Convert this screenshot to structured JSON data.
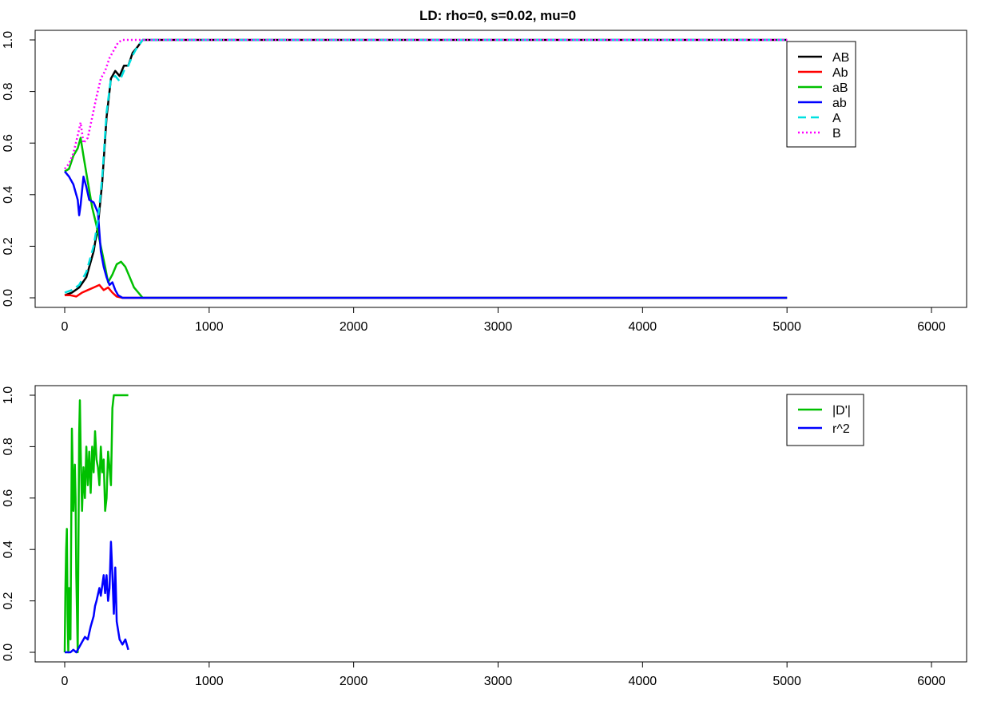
{
  "title": "LD: rho=0, s=0.02, mu=0",
  "chart_data": [
    {
      "type": "line",
      "title": "LD: rho=0, s=0.02, mu=0",
      "xlabel": "",
      "ylabel": "",
      "xlim": [
        0,
        6000
      ],
      "ylim": [
        0,
        1
      ],
      "x_ticks": [
        "0",
        "1000",
        "2000",
        "3000",
        "4000",
        "5000",
        "6000"
      ],
      "y_ticks": [
        "0.0",
        "0.2",
        "0.4",
        "0.6",
        "0.8",
        "1.0"
      ],
      "grid": false,
      "legend_position": "top-right",
      "series": [
        {
          "name": "AB",
          "color": "#000000",
          "dash": "solid",
          "x": [
            0,
            50,
            100,
            150,
            200,
            230,
            260,
            290,
            320,
            350,
            380,
            410,
            440,
            470,
            500,
            540,
            600,
            1000,
            2000,
            3000,
            4000,
            5000
          ],
          "y": [
            0.01,
            0.02,
            0.04,
            0.08,
            0.18,
            0.28,
            0.45,
            0.7,
            0.85,
            0.88,
            0.86,
            0.9,
            0.9,
            0.95,
            0.97,
            1.0,
            1.0,
            1.0,
            1.0,
            1.0,
            1.0,
            1.0
          ]
        },
        {
          "name": "Ab",
          "color": "#ff0000",
          "dash": "solid",
          "x": [
            0,
            40,
            80,
            120,
            160,
            200,
            240,
            270,
            300,
            330,
            360,
            400,
            500,
            1000,
            5000
          ],
          "y": [
            0.01,
            0.01,
            0.005,
            0.02,
            0.03,
            0.04,
            0.05,
            0.03,
            0.04,
            0.02,
            0.005,
            0.0,
            0.0,
            0.0,
            0.0
          ]
        },
        {
          "name": "aB",
          "color": "#00c000",
          "dash": "solid",
          "x": [
            0,
            30,
            60,
            90,
            110,
            130,
            160,
            190,
            220,
            250,
            280,
            300,
            330,
            360,
            390,
            420,
            450,
            480,
            510,
            540,
            1000,
            5000
          ],
          "y": [
            0.49,
            0.5,
            0.55,
            0.58,
            0.62,
            0.55,
            0.45,
            0.35,
            0.28,
            0.2,
            0.12,
            0.06,
            0.09,
            0.13,
            0.14,
            0.12,
            0.08,
            0.04,
            0.02,
            0.0,
            0.0,
            0.0
          ]
        },
        {
          "name": "ab",
          "color": "#0000ff",
          "dash": "solid",
          "x": [
            0,
            30,
            60,
            90,
            100,
            110,
            130,
            150,
            170,
            200,
            230,
            250,
            270,
            290,
            310,
            330,
            350,
            370,
            400,
            450,
            1000,
            5000
          ],
          "y": [
            0.49,
            0.47,
            0.44,
            0.38,
            0.32,
            0.36,
            0.47,
            0.43,
            0.38,
            0.37,
            0.33,
            0.18,
            0.12,
            0.08,
            0.05,
            0.06,
            0.03,
            0.01,
            0.0,
            0.0,
            0.0,
            0.0
          ]
        },
        {
          "name": "A",
          "color": "#00e0e0",
          "dash": "dashed",
          "x": [
            0,
            50,
            100,
            150,
            200,
            230,
            260,
            290,
            320,
            350,
            380,
            410,
            440,
            470,
            500,
            540,
            600,
            1000,
            2000,
            3000,
            4000,
            5000
          ],
          "y": [
            0.02,
            0.03,
            0.05,
            0.1,
            0.2,
            0.3,
            0.47,
            0.72,
            0.85,
            0.86,
            0.84,
            0.88,
            0.9,
            0.94,
            0.97,
            1.0,
            1.0,
            1.0,
            1.0,
            1.0,
            1.0,
            1.0
          ]
        },
        {
          "name": "B",
          "color": "#ff00ff",
          "dash": "dotted",
          "x": [
            0,
            30,
            60,
            90,
            110,
            130,
            160,
            190,
            220,
            250,
            280,
            310,
            340,
            370,
            400,
            450,
            500,
            1000,
            2000,
            3000,
            4000,
            5000
          ],
          "y": [
            0.5,
            0.52,
            0.56,
            0.63,
            0.68,
            0.6,
            0.62,
            0.7,
            0.78,
            0.85,
            0.88,
            0.93,
            0.96,
            0.99,
            1.0,
            1.0,
            1.0,
            1.0,
            1.0,
            1.0,
            1.0,
            1.0
          ]
        }
      ]
    },
    {
      "type": "line",
      "title": "",
      "xlabel": "",
      "ylabel": "",
      "xlim": [
        0,
        6000
      ],
      "ylim": [
        0,
        1
      ],
      "x_ticks": [
        "0",
        "1000",
        "2000",
        "3000",
        "4000",
        "5000",
        "6000"
      ],
      "y_ticks": [
        "0.0",
        "0.2",
        "0.4",
        "0.6",
        "0.8",
        "1.0"
      ],
      "grid": false,
      "legend_position": "top-right",
      "series": [
        {
          "name": "|D'|",
          "color": "#00c000",
          "dash": "solid",
          "x": [
            0,
            5,
            10,
            15,
            20,
            25,
            30,
            40,
            50,
            55,
            60,
            70,
            75,
            80,
            90,
            100,
            105,
            110,
            120,
            130,
            140,
            150,
            160,
            170,
            180,
            190,
            200,
            210,
            220,
            230,
            240,
            250,
            260,
            270,
            280,
            290,
            300,
            310,
            320,
            330,
            340,
            360,
            400,
            440
          ],
          "y": [
            0.0,
            0.25,
            0.4,
            0.48,
            0.15,
            0.0,
            0.25,
            0.05,
            0.87,
            0.72,
            0.55,
            0.73,
            0.6,
            0.3,
            0.0,
            0.85,
            0.98,
            0.8,
            0.55,
            0.72,
            0.6,
            0.8,
            0.65,
            0.78,
            0.62,
            0.8,
            0.7,
            0.86,
            0.75,
            0.72,
            0.65,
            0.8,
            0.7,
            0.75,
            0.55,
            0.6,
            0.78,
            0.72,
            0.65,
            0.95,
            1.0,
            1.0,
            1.0,
            1.0
          ]
        },
        {
          "name": "r^2",
          "color": "#0000ff",
          "dash": "solid",
          "x": [
            0,
            20,
            40,
            60,
            80,
            100,
            120,
            140,
            160,
            180,
            200,
            210,
            220,
            240,
            250,
            260,
            270,
            280,
            290,
            300,
            310,
            320,
            330,
            340,
            350,
            360,
            380,
            400,
            420,
            440
          ],
          "y": [
            0.0,
            0.0,
            0.0,
            0.01,
            0.0,
            0.02,
            0.04,
            0.06,
            0.05,
            0.1,
            0.14,
            0.18,
            0.2,
            0.25,
            0.22,
            0.26,
            0.3,
            0.23,
            0.3,
            0.2,
            0.25,
            0.43,
            0.3,
            0.15,
            0.33,
            0.12,
            0.05,
            0.03,
            0.05,
            0.01
          ]
        }
      ]
    }
  ]
}
